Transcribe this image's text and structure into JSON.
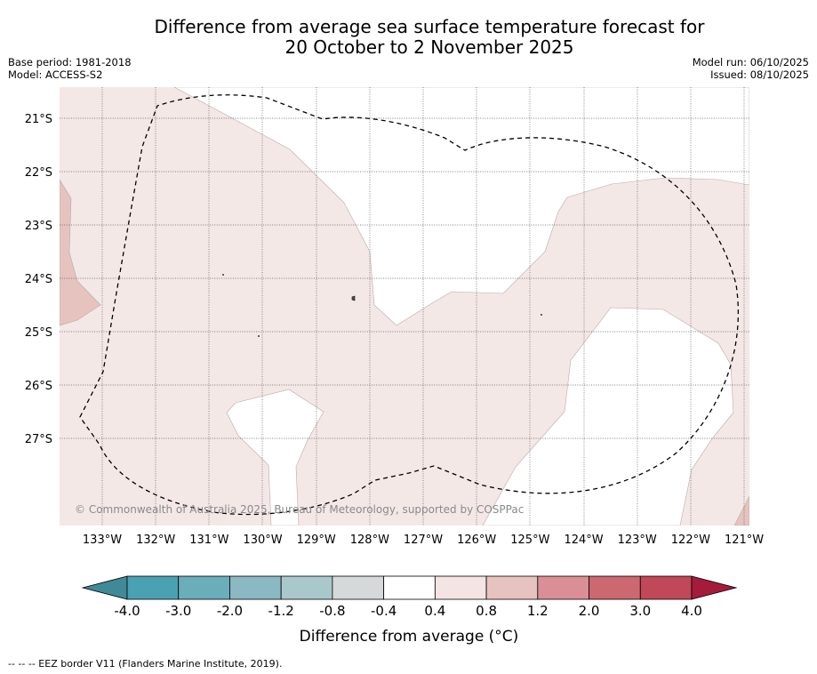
{
  "title_line1": "Difference from average sea surface temperature forecast for",
  "title_line2": "20 October to 2 November 2025",
  "base_period": "Base period: 1981-2018",
  "model": "Model: ACCESS-S2",
  "model_run": "Model run: 06/10/2025",
  "issued": "Issued: 08/10/2025",
  "lat_labels": [
    "21°S",
    "22°S",
    "23°S",
    "24°S",
    "25°S",
    "26°S",
    "27°S"
  ],
  "lon_labels": [
    "133°W",
    "132°W",
    "131°W",
    "130°W",
    "129°W",
    "128°W",
    "127°W",
    "126°W",
    "125°W",
    "124°W",
    "123°W",
    "122°W",
    "121°W"
  ],
  "copyright": "© Commonwealth of Australia 2025, Bureau of Meteorology, supported by COSPPac",
  "colorbar": {
    "ticks": [
      "-4.0",
      "-3.0",
      "-2.0",
      "-1.2",
      "-0.8",
      "-0.4",
      "0.4",
      "0.8",
      "1.2",
      "2.0",
      "3.0",
      "4.0"
    ],
    "colors": [
      "#3f8a96",
      "#4aa1b2",
      "#6aaeba",
      "#8ab8c3",
      "#a9c8cc",
      "#d5d9da",
      "#ffffff",
      "#f4e4e3",
      "#e6c3bf",
      "#d98f95",
      "#cc6870",
      "#c04858",
      "#a51c3a"
    ],
    "title": "Difference from average (°C)"
  },
  "footnote": "--  --  -- EEZ border V11 (Flanders Marine Institute, 2019).",
  "colors": {
    "light_pink": "#f4e8e7",
    "pink": "#e6c3bf",
    "border": "#000000"
  }
}
